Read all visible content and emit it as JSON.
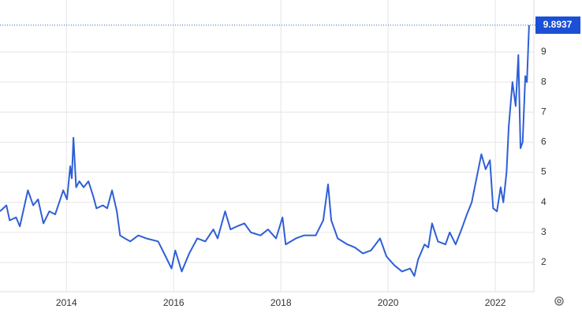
{
  "chart_data": {
    "type": "line",
    "x": [
      2012.76,
      2012.88,
      2012.94,
      2013.06,
      2013.13,
      2013.28,
      2013.38,
      2013.47,
      2013.57,
      2013.68,
      2013.79,
      2013.94,
      2014.01,
      2014.07,
      2014.1,
      2014.13,
      2014.18,
      2014.24,
      2014.32,
      2014.41,
      2014.5,
      2014.56,
      2014.68,
      2014.76,
      2014.85,
      2014.94,
      2015.0,
      2015.09,
      2015.19,
      2015.34,
      2015.49,
      2015.71,
      2015.85,
      2015.96,
      2016.03,
      2016.15,
      2016.29,
      2016.44,
      2016.59,
      2016.74,
      2016.82,
      2016.96,
      2017.06,
      2017.18,
      2017.32,
      2017.44,
      2017.62,
      2017.76,
      2017.91,
      2018.03,
      2018.09,
      2018.28,
      2018.43,
      2018.65,
      2018.79,
      2018.88,
      2018.94,
      2019.06,
      2019.24,
      2019.38,
      2019.53,
      2019.68,
      2019.85,
      2019.97,
      2020.12,
      2020.26,
      2020.41,
      2020.49,
      2020.56,
      2020.68,
      2020.75,
      2020.82,
      2020.93,
      2021.07,
      2021.15,
      2021.26,
      2021.37,
      2021.47,
      2021.56,
      2021.65,
      2021.74,
      2021.82,
      2021.9,
      2021.96,
      2022.03,
      2022.1,
      2022.15,
      2022.21,
      2022.25,
      2022.32,
      2022.38,
      2022.43,
      2022.47,
      2022.51,
      2022.56,
      2022.59,
      2022.63
    ],
    "series": [
      {
        "color": "#2f5fd6",
        "values": [
          3.7,
          3.9,
          3.4,
          3.5,
          3.2,
          4.4,
          3.9,
          4.1,
          3.3,
          3.7,
          3.6,
          4.4,
          4.1,
          5.2,
          4.8,
          6.15,
          4.5,
          4.7,
          4.5,
          4.7,
          4.2,
          3.8,
          3.9,
          3.8,
          4.4,
          3.7,
          2.9,
          2.8,
          2.7,
          2.9,
          2.8,
          2.7,
          2.2,
          1.8,
          2.4,
          1.7,
          2.3,
          2.8,
          2.7,
          3.1,
          2.8,
          3.7,
          3.1,
          3.2,
          3.3,
          3.0,
          2.9,
          3.1,
          2.8,
          3.5,
          2.6,
          2.8,
          2.9,
          2.9,
          3.4,
          4.6,
          3.4,
          2.8,
          2.6,
          2.5,
          2.3,
          2.4,
          2.8,
          2.2,
          1.9,
          1.7,
          1.8,
          1.55,
          2.1,
          2.6,
          2.5,
          3.3,
          2.7,
          2.6,
          3.0,
          2.6,
          3.1,
          3.6,
          4.0,
          4.8,
          5.6,
          5.1,
          5.4,
          3.8,
          3.7,
          4.5,
          4.0,
          5.0,
          6.5,
          8.0,
          7.2,
          8.9,
          5.8,
          6.0,
          8.2,
          8.0,
          9.8937
        ]
      }
    ],
    "xlim": [
      2012.76,
      2022.72
    ],
    "xticks": [
      2014,
      2016,
      2018,
      2020,
      2022
    ],
    "ylim": [
      1.03,
      10.73
    ],
    "yticks": [
      2,
      3,
      4,
      5,
      6,
      7,
      8,
      9
    ],
    "grid": true
  }
}
